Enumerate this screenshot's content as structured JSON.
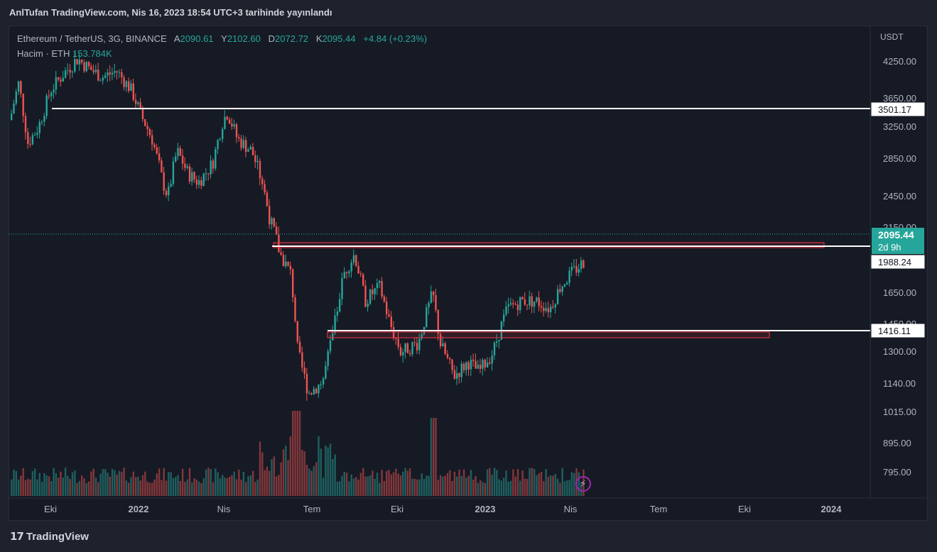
{
  "header": {
    "published": "AnlTufan TradingView.com, Nis 16, 2023 18:54 UTC+3 tarihinde yayınlandı"
  },
  "legend": {
    "symbol": "Ethereum / TetherUS, 3G, BINANCE",
    "open_label": "A",
    "open": "2090.61",
    "high_label": "Y",
    "high": "2102.60",
    "low_label": "D",
    "low": "2072.72",
    "close_label": "K",
    "close": "2095.44",
    "change": "+4.84 (+0.23%)",
    "volume_label": "Hacim · ETH",
    "volume": "153.784K"
  },
  "price_axis": {
    "currency": "USDT",
    "ticks": [
      "4250.00",
      "3650.00",
      "3250.00",
      "2850.00",
      "2450.00",
      "2150.00",
      "1650.00",
      "1450.00",
      "1300.00",
      "1140.00",
      "1015.00",
      "895.00",
      "795.00"
    ]
  },
  "time_axis": {
    "ticks": [
      "Eki",
      "2022",
      "Nis",
      "Tem",
      "Eki",
      "2023",
      "Nis",
      "Tem",
      "Eki",
      "2024"
    ]
  },
  "price_labels": {
    "current": "2095.44",
    "countdown": "2d 9h",
    "level_high": "3501.17",
    "level_mid": "1988.24",
    "level_low": "1416.11"
  },
  "colors": {
    "up": "#26a69a",
    "down": "#ef5350",
    "zone": "#f23645",
    "level_line": "#ffffff",
    "background": "#161a25"
  },
  "brand": {
    "name": "TradingView"
  },
  "icons": {
    "bolt": "lightning-icon"
  }
}
